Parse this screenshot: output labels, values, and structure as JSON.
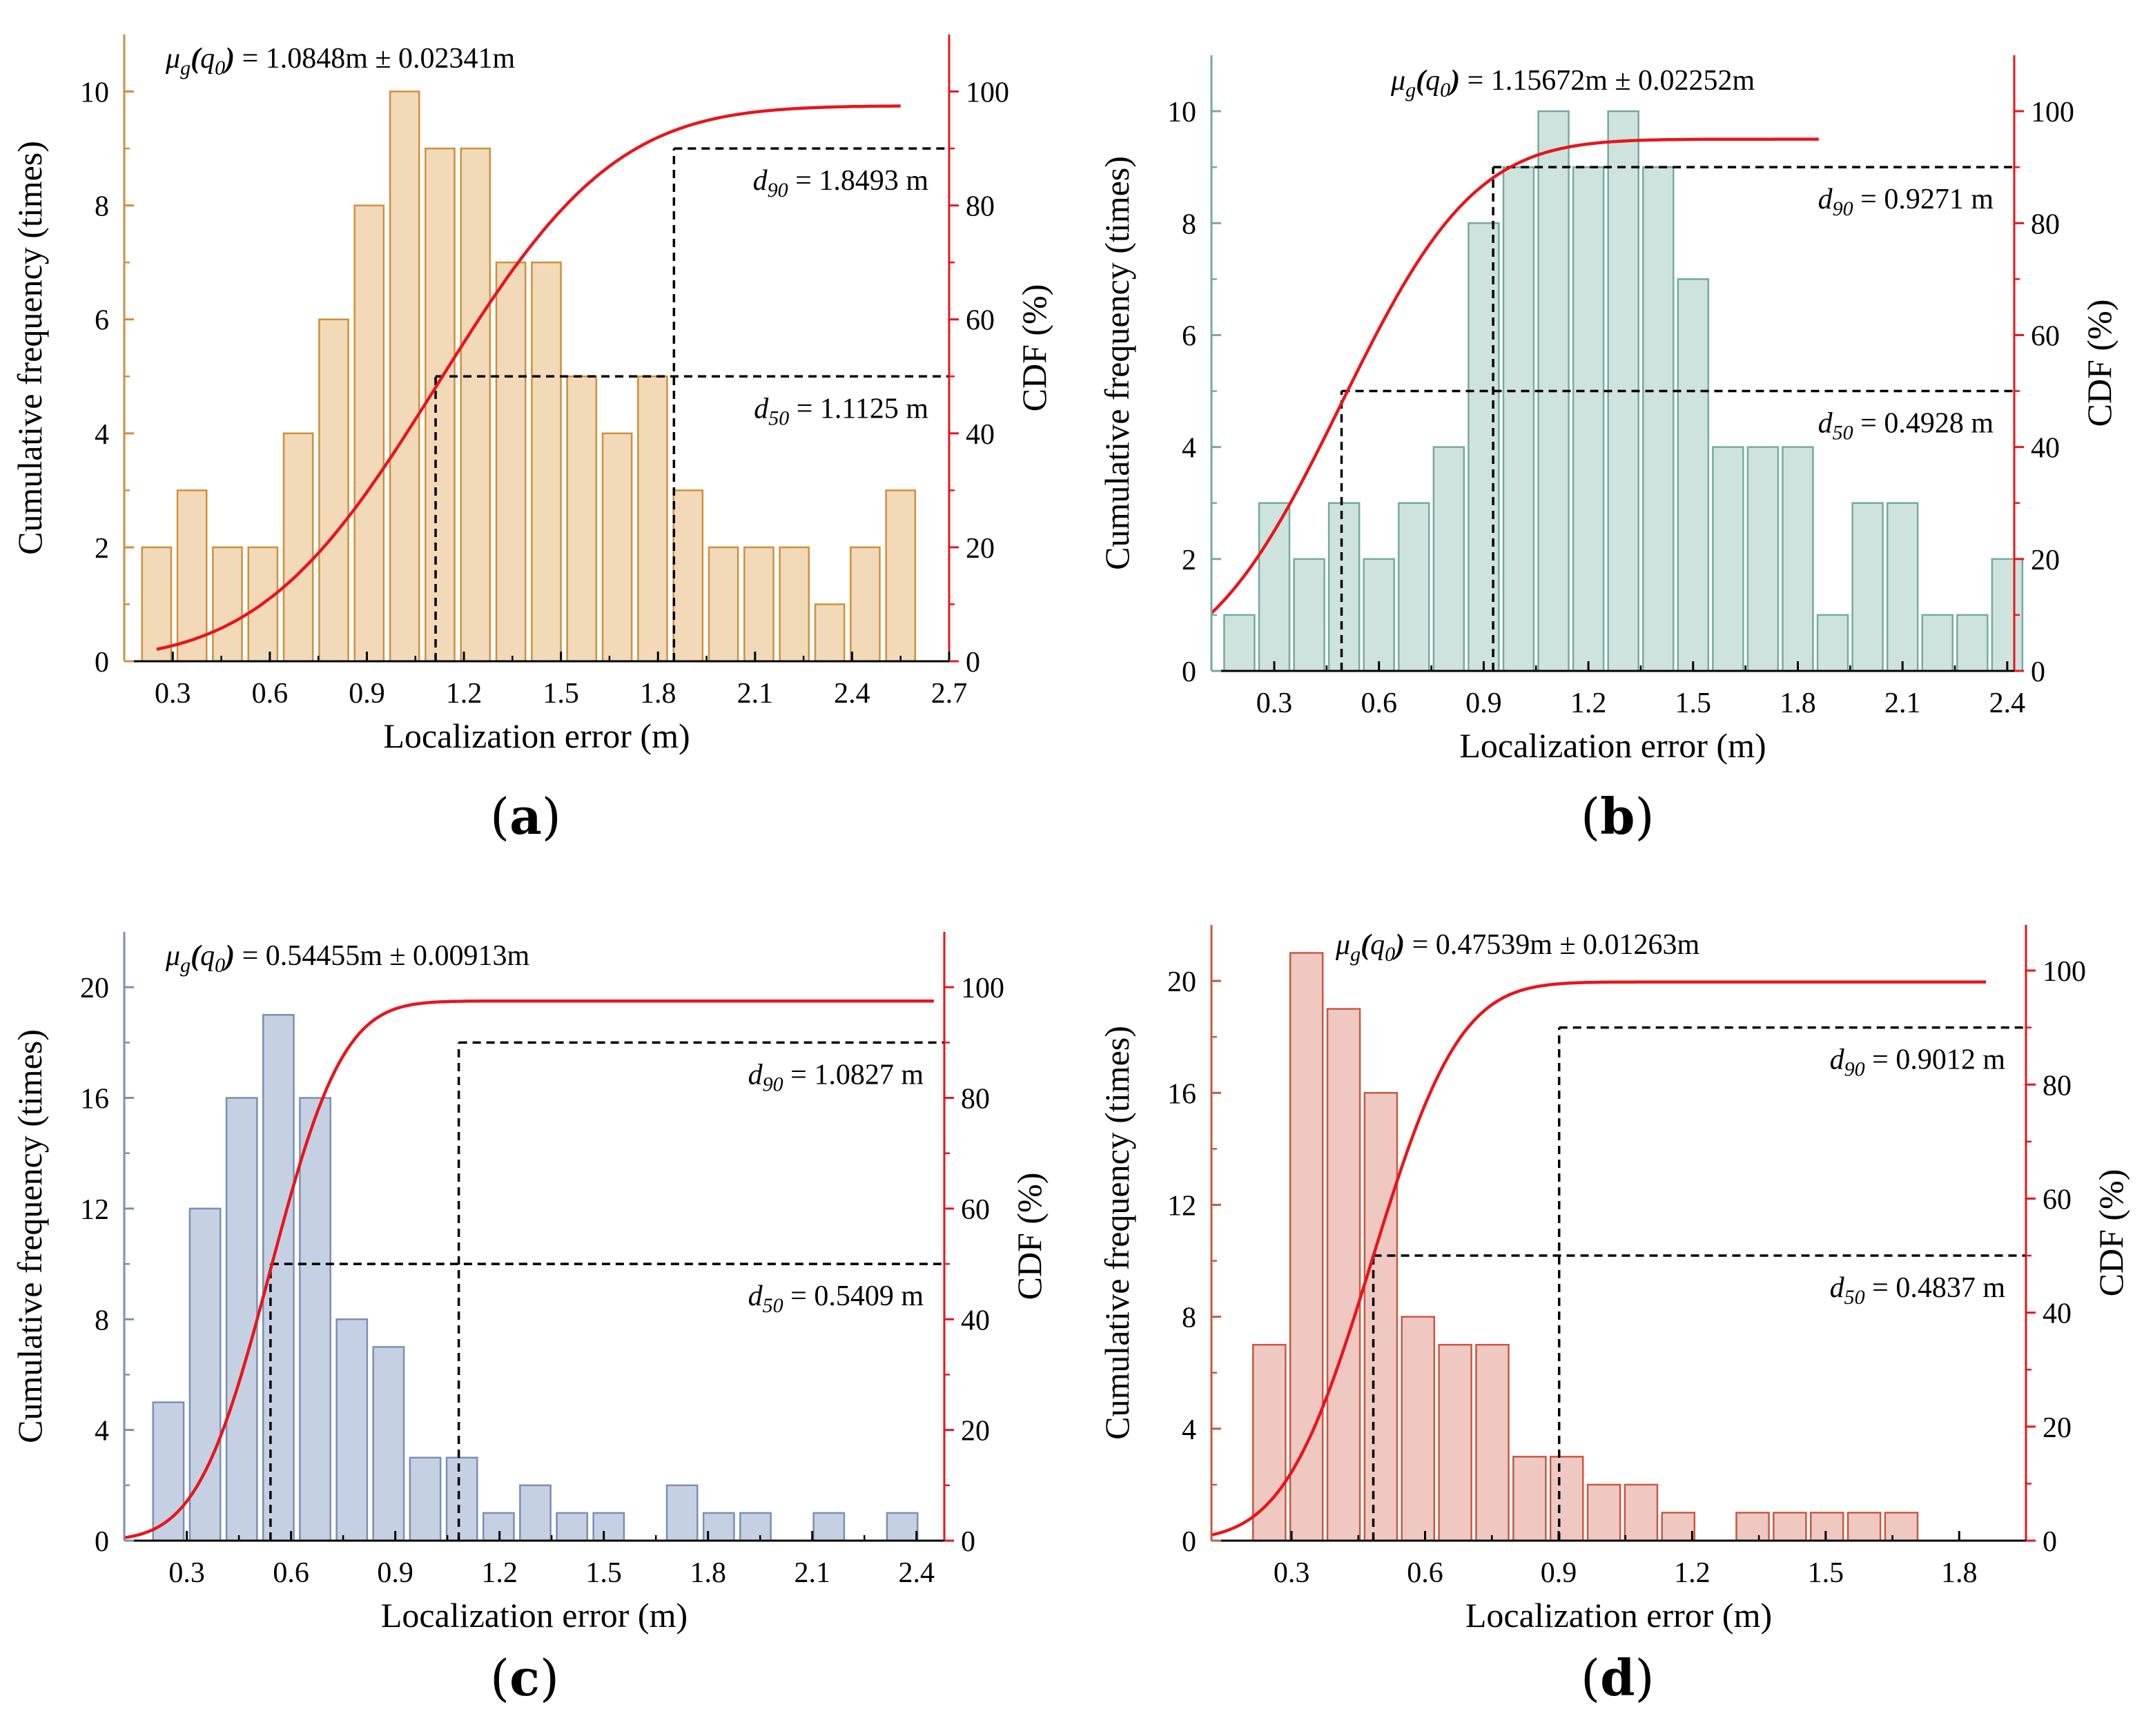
{
  "figure": {
    "panels": [
      {
        "label": "(a)",
        "label_letter": "a"
      },
      {
        "label": "(b)",
        "label_letter": "b"
      },
      {
        "label": "(c)",
        "label_letter": "c"
      },
      {
        "label": "(d)",
        "label_letter": "d"
      }
    ]
  },
  "chart_data": [
    {
      "type": "bar",
      "panel": "a",
      "xlabel": "Localization error (m)",
      "ylabel": "Cumulative frequency (times)",
      "y2label": "CDF (%)",
      "xlim": [
        0.15,
        2.7
      ],
      "ylim": [
        0,
        11
      ],
      "y2lim": [
        0,
        110
      ],
      "xticks": [
        0.3,
        0.6,
        0.9,
        1.2,
        1.5,
        1.8,
        2.1,
        2.4,
        2.7
      ],
      "xtick_labels": [
        "0.3",
        "0.6",
        "0.9",
        "1.2",
        "1.5",
        "1.8",
        "2.1",
        "2.4",
        "2.7"
      ],
      "yticks": [
        0,
        2,
        4,
        6,
        8,
        10
      ],
      "ytick_labels": [
        "0",
        "2",
        "4",
        "6",
        "8",
        "10"
      ],
      "y2ticks": [
        0,
        20,
        40,
        60,
        80,
        100
      ],
      "y2tick_labels": [
        "0",
        "20",
        "40",
        "60",
        "80",
        "100"
      ],
      "bar_width": 0.09,
      "bins": [
        0.25,
        0.3595,
        0.469,
        0.5786,
        0.688,
        0.7976,
        0.9071,
        1.0167,
        1.1262,
        1.2357,
        1.3452,
        1.4548,
        1.5643,
        1.6738,
        1.7833,
        1.8929,
        2.0024,
        2.1119,
        2.2214,
        2.331,
        2.4405,
        2.55
      ],
      "values": [
        2,
        3,
        2,
        2,
        4,
        6,
        8,
        10,
        9,
        9,
        7,
        7,
        5,
        4,
        5,
        3,
        2,
        2,
        2,
        1,
        2,
        3
      ],
      "cdf": {
        "mu": 1.12,
        "sigma": 0.43,
        "scale": 97.5,
        "x_start": 0.25,
        "x_end": 2.55
      },
      "mu_label": "μg(q0)",
      "mu_sym": "μ",
      "mu_sub": "g",
      "mu_open": "(",
      "mu_q": "q",
      "mu_q_sub": "0",
      "mu_close": ")",
      "mu_value": " = 1.0848m ± 0.02341m",
      "d90": {
        "x": 1.8493,
        "cdf": 90,
        "sym": "d",
        "sub": "90",
        "value": " = 1.8493 m"
      },
      "d50": {
        "x": 1.1125,
        "cdf": 50,
        "sym": "d",
        "sub": "50",
        "value": " = 1.1125 m"
      },
      "colors": {
        "bar_fill": "#f2d9b8",
        "bar_stroke": "#d08f3c",
        "cdf": "#e8151b",
        "left_axis": "#d08f3c"
      }
    },
    {
      "type": "bar",
      "panel": "b",
      "xlabel": "Localization error (m)",
      "ylabel": "Cumulative frequency (times)",
      "y2label": "CDF (%)",
      "xlim": [
        0.12,
        2.42
      ],
      "ylim": [
        0,
        11
      ],
      "y2lim": [
        0,
        110
      ],
      "xticks": [
        0.3,
        0.6,
        0.9,
        1.2,
        1.5,
        1.8,
        2.1,
        2.4
      ],
      "xtick_labels": [
        "0.3",
        "0.6",
        "0.9",
        "1.2",
        "1.5",
        "1.8",
        "2.1",
        "2.4"
      ],
      "yticks": [
        0,
        2,
        4,
        6,
        8,
        10
      ],
      "ytick_labels": [
        "0",
        "2",
        "4",
        "6",
        "8",
        "10"
      ],
      "y2ticks": [
        0,
        20,
        40,
        60,
        80,
        100
      ],
      "y2tick_labels": [
        "0",
        "20",
        "40",
        "60",
        "80",
        "100"
      ],
      "bar_width": 0.087,
      "bins": [
        0.2,
        0.3,
        0.4,
        0.5,
        0.6,
        0.7,
        0.8,
        0.9,
        1.0,
        1.1,
        1.2,
        1.3,
        1.4,
        1.5,
        1.6,
        1.7,
        1.8,
        1.9,
        2.0,
        2.1,
        2.2,
        2.3,
        2.4
      ],
      "values": [
        1,
        3,
        2,
        3,
        2,
        3,
        4,
        8,
        9,
        10,
        9,
        10,
        9,
        7,
        4,
        4,
        4,
        1,
        3,
        3,
        1,
        1,
        2
      ],
      "cdf": {
        "mu": 0.49,
        "sigma": 0.3,
        "scale": 95,
        "x_start": 0.12,
        "x_end": 1.86
      },
      "mu_label": "μg(q0)",
      "mu_sym": "μ",
      "mu_sub": "g",
      "mu_open": "(",
      "mu_q": "q",
      "mu_q_sub": "0",
      "mu_close": ")",
      "mu_value": " = 1.15672m ± 0.02252m",
      "d90": {
        "x": 0.9271,
        "cdf": 90,
        "sym": "d",
        "sub": "90",
        "value": " = 0.9271 m"
      },
      "d50": {
        "x": 0.4928,
        "cdf": 50,
        "sym": "d",
        "sub": "50",
        "value": " = 0.4928 m"
      },
      "colors": {
        "bar_fill": "#cfe3de",
        "bar_stroke": "#74ab9f",
        "cdf": "#e8151b",
        "left_axis": "#74ab9f"
      }
    },
    {
      "type": "bar",
      "panel": "c",
      "xlabel": "Localization error (m)",
      "ylabel": "Cumulative frequency (times)",
      "y2label": "CDF (%)",
      "xlim": [
        0.12,
        2.48
      ],
      "ylim": [
        0,
        22
      ],
      "y2lim": [
        0,
        110
      ],
      "xticks": [
        0.3,
        0.6,
        0.9,
        1.2,
        1.5,
        1.8,
        2.1,
        2.4
      ],
      "xtick_labels": [
        "0.3",
        "0.6",
        "0.9",
        "1.2",
        "1.5",
        "1.8",
        "2.1",
        "2.4"
      ],
      "yticks": [
        0,
        4,
        8,
        12,
        16,
        20
      ],
      "ytick_labels": [
        "0",
        "4",
        "8",
        "12",
        "16",
        "20"
      ],
      "y2ticks": [
        0,
        20,
        40,
        60,
        80,
        100
      ],
      "y2tick_labels": [
        "0",
        "20",
        "40",
        "60",
        "80",
        "100"
      ],
      "bar_width": 0.088,
      "bins": [
        0.247,
        0.3526,
        0.4582,
        0.5638,
        0.6694,
        0.775,
        0.8806,
        0.9862,
        1.0918,
        1.1974,
        1.303,
        1.4086,
        1.5142,
        1.6198,
        1.7254,
        1.831,
        1.9366,
        2.0422,
        2.1478,
        2.2534,
        2.359
      ],
      "values": [
        5,
        12,
        16,
        19,
        16,
        8,
        7,
        3,
        3,
        1,
        2,
        1,
        1,
        0,
        2,
        1,
        1,
        0,
        1,
        0,
        1
      ],
      "cdf": {
        "mu": 0.54,
        "sigma": 0.165,
        "scale": 97.5,
        "x_start": 0.12,
        "x_end": 2.45
      },
      "mu_label": "μg(q0)",
      "mu_sym": "μ",
      "mu_sub": "g",
      "mu_open": "(",
      "mu_q": "q",
      "mu_q_sub": "0",
      "mu_close": ")",
      "mu_value": " = 0.54455m ± 0.00913m",
      "d90": {
        "x": 1.0827,
        "cdf": 90,
        "sym": "d",
        "sub": "90",
        "value": " = 1.0827 m"
      },
      "d50": {
        "x": 0.5409,
        "cdf": 50,
        "sym": "d",
        "sub": "50",
        "value": " = 0.5409 m"
      },
      "colors": {
        "bar_fill": "#c5d1e3",
        "bar_stroke": "#7a8fb6",
        "cdf": "#e8151b",
        "left_axis": "#7a8fb6"
      }
    },
    {
      "type": "bar",
      "panel": "d",
      "xlabel": "Localization error (m)",
      "ylabel": "Cumulative frequency (times)",
      "y2label": "CDF (%)",
      "xlim": [
        0.12,
        1.95
      ],
      "ylim": [
        0,
        22
      ],
      "y2lim": [
        0,
        108
      ],
      "xticks": [
        0.3,
        0.6,
        0.9,
        1.2,
        1.5,
        1.8
      ],
      "xtick_labels": [
        "0.3",
        "0.6",
        "0.9",
        "1.2",
        "1.5",
        "1.8"
      ],
      "yticks": [
        0,
        4,
        8,
        12,
        16,
        20
      ],
      "ytick_labels": [
        "0",
        "4",
        "8",
        "12",
        "16",
        "20"
      ],
      "y2ticks": [
        0,
        20,
        40,
        60,
        80,
        100
      ],
      "y2tick_labels": [
        "0",
        "20",
        "40",
        "60",
        "80",
        "100"
      ],
      "bar_width": 0.073,
      "bins": [
        0.25,
        0.3335,
        0.4171,
        0.5006,
        0.5841,
        0.6676,
        0.7512,
        0.8347,
        0.9182,
        1.0018,
        1.0853,
        1.1688,
        1.2524,
        1.3359,
        1.4194,
        1.5029,
        1.5865,
        1.67,
        1.7535,
        1.8371
      ],
      "values": [
        7,
        21,
        19,
        16,
        8,
        7,
        7,
        3,
        3,
        2,
        2,
        1,
        0,
        1,
        1,
        1,
        1,
        1,
        0,
        0
      ],
      "cdf": {
        "mu": 0.48,
        "sigma": 0.155,
        "scale": 98,
        "x_start": 0.12,
        "x_end": 1.86
      },
      "mu_label": "μg(q0)",
      "mu_sym": "μ",
      "mu_sub": "g",
      "mu_open": "(",
      "mu_q": "q",
      "mu_q_sub": "0",
      "mu_close": ")",
      "mu_value": " = 0.47539m ± 0.01263m",
      "d90": {
        "x": 0.9012,
        "cdf": 90,
        "sym": "d",
        "sub": "90",
        "value": " = 0.9012 m"
      },
      "d50": {
        "x": 0.4837,
        "cdf": 50,
        "sym": "d",
        "sub": "50",
        "value": " = 0.4837 m"
      },
      "colors": {
        "bar_fill": "#efc8c1",
        "bar_stroke": "#c9583f",
        "cdf": "#e8151b",
        "left_axis": "#c9583f"
      }
    }
  ]
}
